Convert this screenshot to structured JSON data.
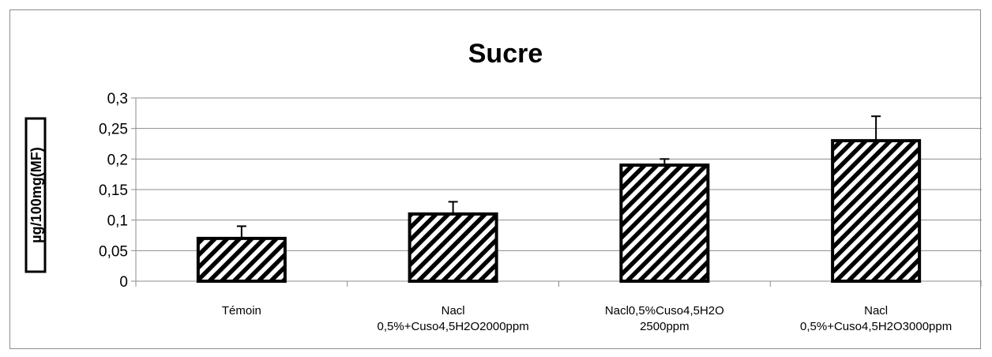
{
  "chart_data": {
    "type": "bar",
    "title": "Sucre",
    "xlabel": "",
    "ylabel": "µg/100mg(MF)",
    "ylim": [
      0,
      0.3
    ],
    "yticks": [
      "0",
      "0,05",
      "0,1",
      "0,15",
      "0,2",
      "0,25",
      "0,3"
    ],
    "grid": true,
    "categories": [
      [
        "Témoin"
      ],
      [
        "Nacl",
        "0,5%+Cuso4,5H2O2000ppm"
      ],
      [
        "Nacl0,5%Cuso4,5H2O",
        "2500ppm"
      ],
      [
        "Nacl",
        "0,5%+Cuso4,5H2O3000ppm"
      ]
    ],
    "values": [
      0.07,
      0.11,
      0.19,
      0.23
    ],
    "error_bars": [
      0.02,
      0.02,
      0.01,
      0.04
    ],
    "bar_fill": "diagonal-hatch",
    "colors": {
      "bar_stroke": "#000000",
      "hatch": "#000000",
      "grid": "#8c8c8c"
    }
  }
}
